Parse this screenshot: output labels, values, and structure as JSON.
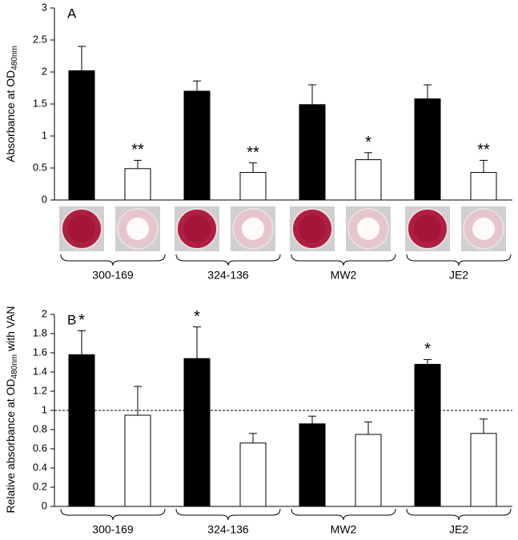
{
  "chart_data": [
    {
      "type": "bar",
      "panel": "A",
      "y_label": {
        "text": "Absorbance at OD",
        "subscript": "480nm"
      },
      "categories": [
        "300-169",
        "324-136",
        "MW2",
        "JE2"
      ],
      "series": [
        {
          "color": "#000000",
          "values": [
            2.02,
            1.7,
            1.49,
            1.58
          ],
          "errors": [
            0.38,
            0.16,
            0.31,
            0.22
          ]
        },
        {
          "color": "#ffffff",
          "values": [
            0.49,
            0.43,
            0.63,
            0.43
          ],
          "errors": [
            0.13,
            0.15,
            0.11,
            0.19
          ],
          "labels": [
            "**",
            "**",
            "*",
            "**"
          ]
        }
      ],
      "ylim": [
        0,
        3
      ],
      "yticks": [
        0,
        0.5,
        1,
        1.5,
        2,
        2.5,
        3
      ]
    },
    {
      "type": "bar",
      "panel": "B",
      "y_label": {
        "text": "Relative absorbance at OD",
        "subscript": "480nm",
        "suffix": " with VAN"
      },
      "categories": [
        "300-169",
        "324-136",
        "MW2",
        "JE2"
      ],
      "series": [
        {
          "color": "#000000",
          "values": [
            1.58,
            1.54,
            0.86,
            1.48
          ],
          "errors": [
            0.25,
            0.33,
            0.08,
            0.05
          ],
          "labels": [
            "*",
            "*",
            null,
            "*"
          ]
        },
        {
          "color": "#ffffff",
          "values": [
            0.95,
            0.66,
            0.75,
            0.76
          ],
          "errors": [
            0.3,
            0.1,
            0.13,
            0.15
          ]
        }
      ],
      "ylim": [
        0,
        2
      ],
      "yticks": [
        0,
        0.2,
        0.4,
        0.6,
        0.8,
        1,
        1.2,
        1.4,
        1.6,
        1.8,
        2
      ],
      "refline": 1
    }
  ]
}
